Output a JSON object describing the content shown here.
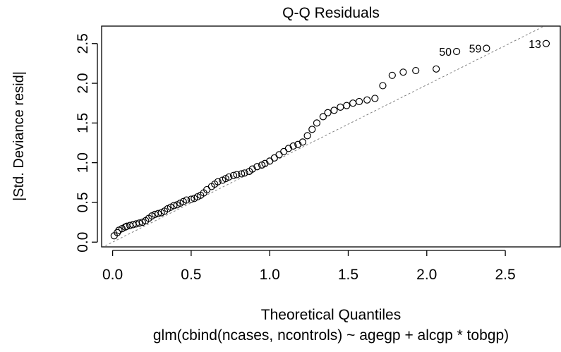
{
  "chart_data": {
    "type": "scatter",
    "title": "Q-Q Residuals",
    "xlabel": "Theoretical Quantiles",
    "ylabel": "|Std. Deviance resid|",
    "sub": "glm(cbind(ncases, ncontrols) ~ agegp + alcgp * tobgp)",
    "xlim": [
      -0.07,
      2.85
    ],
    "ylim": [
      -0.06,
      2.72
    ],
    "x_ticks": [
      "0.0",
      "0.5",
      "1.0",
      "1.5",
      "2.0",
      "2.5"
    ],
    "y_ticks": [
      "0.0",
      "0.5",
      "1.0",
      "1.5",
      "2.0",
      "2.5"
    ],
    "grid": false,
    "reference_line": {
      "style": "dashed",
      "color": "#808080",
      "intercept": 0.0,
      "slope": 0.99
    },
    "point_labels": [
      "50",
      "59",
      "13"
    ],
    "points": [
      {
        "x": 0.01,
        "y": 0.08
      },
      {
        "x": 0.03,
        "y": 0.12
      },
      {
        "x": 0.04,
        "y": 0.15
      },
      {
        "x": 0.06,
        "y": 0.17
      },
      {
        "x": 0.08,
        "y": 0.19
      },
      {
        "x": 0.09,
        "y": 0.2
      },
      {
        "x": 0.11,
        "y": 0.21
      },
      {
        "x": 0.13,
        "y": 0.22
      },
      {
        "x": 0.15,
        "y": 0.23
      },
      {
        "x": 0.17,
        "y": 0.24
      },
      {
        "x": 0.19,
        "y": 0.25
      },
      {
        "x": 0.21,
        "y": 0.27
      },
      {
        "x": 0.23,
        "y": 0.3
      },
      {
        "x": 0.25,
        "y": 0.33
      },
      {
        "x": 0.27,
        "y": 0.35
      },
      {
        "x": 0.29,
        "y": 0.36
      },
      {
        "x": 0.31,
        "y": 0.37
      },
      {
        "x": 0.33,
        "y": 0.39
      },
      {
        "x": 0.35,
        "y": 0.42
      },
      {
        "x": 0.37,
        "y": 0.44
      },
      {
        "x": 0.39,
        "y": 0.46
      },
      {
        "x": 0.41,
        "y": 0.47
      },
      {
        "x": 0.43,
        "y": 0.49
      },
      {
        "x": 0.45,
        "y": 0.51
      },
      {
        "x": 0.47,
        "y": 0.53
      },
      {
        "x": 0.5,
        "y": 0.54
      },
      {
        "x": 0.52,
        "y": 0.55
      },
      {
        "x": 0.54,
        "y": 0.57
      },
      {
        "x": 0.56,
        "y": 0.59
      },
      {
        "x": 0.58,
        "y": 0.62
      },
      {
        "x": 0.6,
        "y": 0.66
      },
      {
        "x": 0.63,
        "y": 0.7
      },
      {
        "x": 0.65,
        "y": 0.73
      },
      {
        "x": 0.67,
        "y": 0.76
      },
      {
        "x": 0.7,
        "y": 0.78
      },
      {
        "x": 0.72,
        "y": 0.8
      },
      {
        "x": 0.74,
        "y": 0.82
      },
      {
        "x": 0.77,
        "y": 0.84
      },
      {
        "x": 0.79,
        "y": 0.85
      },
      {
        "x": 0.82,
        "y": 0.86
      },
      {
        "x": 0.84,
        "y": 0.87
      },
      {
        "x": 0.87,
        "y": 0.89
      },
      {
        "x": 0.89,
        "y": 0.92
      },
      {
        "x": 0.92,
        "y": 0.95
      },
      {
        "x": 0.95,
        "y": 0.97
      },
      {
        "x": 0.97,
        "y": 0.99
      },
      {
        "x": 1.0,
        "y": 1.02
      },
      {
        "x": 1.03,
        "y": 1.06
      },
      {
        "x": 1.06,
        "y": 1.1
      },
      {
        "x": 1.09,
        "y": 1.14
      },
      {
        "x": 1.12,
        "y": 1.18
      },
      {
        "x": 1.15,
        "y": 1.21
      },
      {
        "x": 1.18,
        "y": 1.23
      },
      {
        "x": 1.21,
        "y": 1.26
      },
      {
        "x": 1.24,
        "y": 1.34
      },
      {
        "x": 1.27,
        "y": 1.42
      },
      {
        "x": 1.3,
        "y": 1.5
      },
      {
        "x": 1.34,
        "y": 1.58
      },
      {
        "x": 1.37,
        "y": 1.63
      },
      {
        "x": 1.41,
        "y": 1.66
      },
      {
        "x": 1.45,
        "y": 1.7
      },
      {
        "x": 1.49,
        "y": 1.72
      },
      {
        "x": 1.53,
        "y": 1.75
      },
      {
        "x": 1.57,
        "y": 1.77
      },
      {
        "x": 1.62,
        "y": 1.79
      },
      {
        "x": 1.67,
        "y": 1.81
      },
      {
        "x": 1.72,
        "y": 1.97
      },
      {
        "x": 1.78,
        "y": 2.1
      },
      {
        "x": 1.85,
        "y": 2.14
      },
      {
        "x": 1.93,
        "y": 2.16
      },
      {
        "x": 2.06,
        "y": 2.18
      },
      {
        "x": 2.19,
        "y": 2.4,
        "label": "50"
      },
      {
        "x": 2.38,
        "y": 2.44,
        "label": "59"
      },
      {
        "x": 2.76,
        "y": 2.5,
        "label": "13"
      }
    ]
  }
}
